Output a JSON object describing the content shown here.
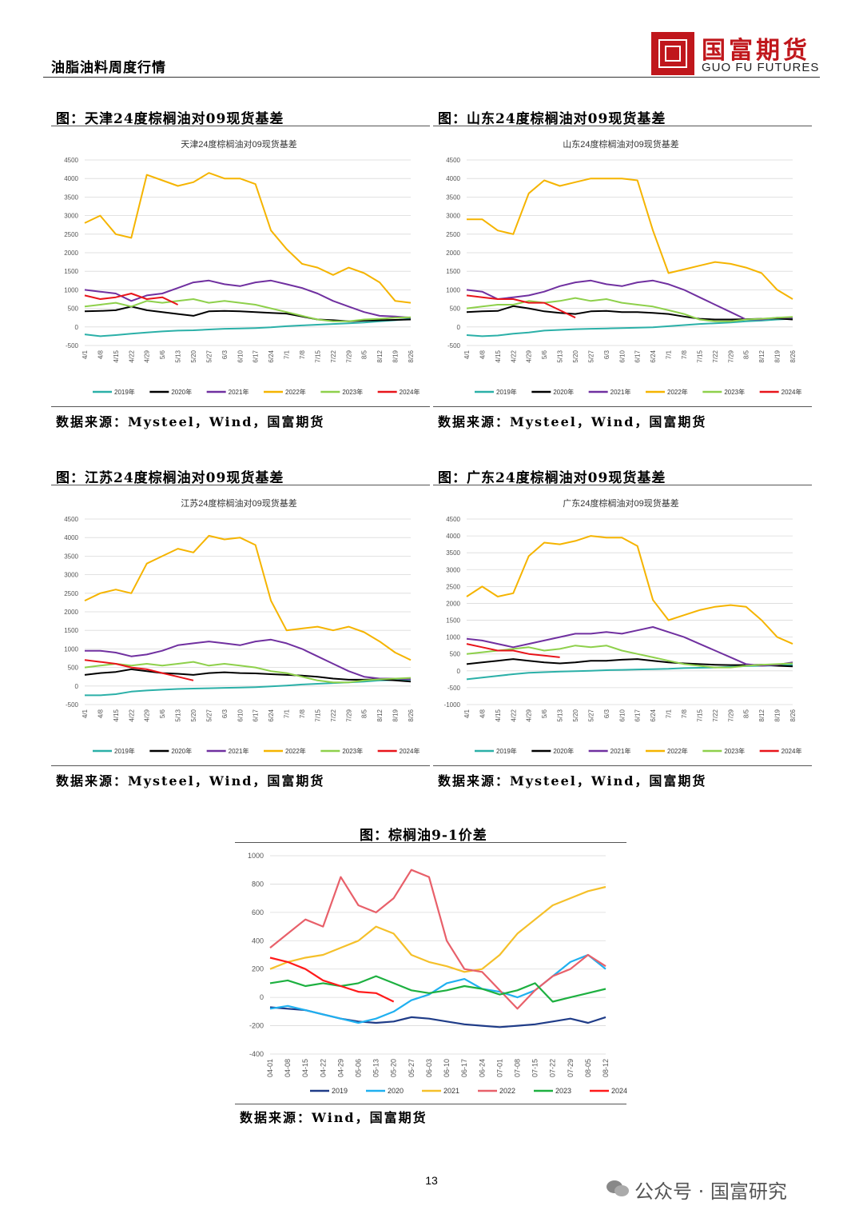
{
  "header": {
    "report_title": "油脂油料周度行情",
    "brand_cn": "国富期货",
    "brand_en": "GUO FU FUTURES"
  },
  "figures": [
    {
      "fig_title": "图：天津24度棕榈油对09现货基差",
      "source": "数据来源：Mysteel，Wind，国富期货"
    },
    {
      "fig_title": "图：山东24度棕榈油对09现货基差",
      "source": "数据来源：Mysteel，Wind，国富期货"
    },
    {
      "fig_title": "图：江苏24度棕榈油对09现货基差",
      "source": "数据来源：Mysteel，Wind，国富期货"
    },
    {
      "fig_title": "图：广东24度棕榈油对09现货基差",
      "source": "数据来源：Mysteel，Wind，国富期货"
    },
    {
      "fig_title": "图：棕榈油9-1价差",
      "source": "数据来源：Wind，国富期货"
    }
  ],
  "page_number": "13",
  "footer": {
    "wechat": "公众号 · 国富研究"
  },
  "chart_data": [
    {
      "type": "line",
      "title": "天津24度棕榈油对09现货基差",
      "x": [
        "4/1",
        "4/8",
        "4/15",
        "4/22",
        "4/29",
        "5/6",
        "5/13",
        "5/20",
        "5/27",
        "6/3",
        "6/10",
        "6/17",
        "6/24",
        "7/1",
        "7/8",
        "7/15",
        "7/22",
        "7/29",
        "8/5",
        "8/12",
        "8/19",
        "8/26"
      ],
      "ylim": [
        -500,
        4500
      ],
      "yticks": [
        "4500",
        "4000",
        "3500",
        "3000",
        "2500",
        "2000",
        "1500",
        "1000",
        "500",
        "0",
        "-500"
      ],
      "series": [
        {
          "name": "2019年",
          "color": "#2bb0a8",
          "values": [
            -200,
            -250,
            -220,
            -180,
            -150,
            -120,
            -100,
            -90,
            -70,
            -50,
            -40,
            -30,
            -10,
            20,
            40,
            60,
            80,
            100,
            120,
            150,
            180,
            220
          ]
        },
        {
          "name": "2020年",
          "color": "#000000",
          "values": [
            420,
            430,
            450,
            550,
            450,
            400,
            350,
            300,
            420,
            430,
            420,
            400,
            380,
            360,
            280,
            200,
            180,
            150,
            170,
            180,
            190,
            200
          ]
        },
        {
          "name": "2021年",
          "color": "#7030a0",
          "values": [
            1000,
            950,
            900,
            700,
            850,
            900,
            1050,
            1200,
            1250,
            1150,
            1100,
            1200,
            1250,
            1150,
            1050,
            900,
            700,
            550,
            400,
            300,
            280,
            250
          ]
        },
        {
          "name": "2022年",
          "color": "#f5b400",
          "values": [
            2800,
            3000,
            2500,
            2400,
            4100,
            3950,
            3800,
            3900,
            4150,
            4000,
            4000,
            3850,
            2600,
            2100,
            1700,
            1600,
            1400,
            1600,
            1450,
            1200,
            700,
            650
          ]
        },
        {
          "name": "2023年",
          "color": "#8ed04b",
          "values": [
            550,
            600,
            650,
            550,
            700,
            650,
            700,
            750,
            650,
            700,
            650,
            600,
            500,
            400,
            300,
            200,
            150,
            150,
            200,
            220,
            250,
            260
          ]
        },
        {
          "name": "2024年",
          "color": "#e8141a",
          "values": [
            850,
            750,
            800,
            900,
            750,
            800,
            600,
            null,
            null,
            null,
            null,
            null,
            null,
            null,
            null,
            null,
            null,
            null,
            null,
            null,
            null,
            null
          ]
        }
      ]
    },
    {
      "type": "line",
      "title": "山东24度棕榈油对09现货基差",
      "x": [
        "4/1",
        "4/8",
        "4/15",
        "4/22",
        "4/29",
        "5/6",
        "5/13",
        "5/20",
        "5/27",
        "6/3",
        "6/10",
        "6/17",
        "6/24",
        "7/1",
        "7/8",
        "7/15",
        "7/22",
        "7/29",
        "8/5",
        "8/12",
        "8/19",
        "8/26"
      ],
      "ylim": [
        -500,
        4500
      ],
      "yticks": [
        "4500",
        "4000",
        "3500",
        "3000",
        "2500",
        "2000",
        "1500",
        "1000",
        "500",
        "0",
        "-500"
      ],
      "series": [
        {
          "name": "2019年",
          "color": "#2bb0a8",
          "values": [
            -220,
            -250,
            -230,
            -180,
            -150,
            -100,
            -80,
            -60,
            -50,
            -40,
            -30,
            -20,
            -10,
            20,
            50,
            80,
            100,
            120,
            150,
            170,
            200,
            220
          ]
        },
        {
          "name": "2020年",
          "color": "#000000",
          "values": [
            400,
            420,
            430,
            560,
            500,
            420,
            380,
            350,
            420,
            430,
            400,
            400,
            380,
            350,
            280,
            220,
            200,
            200,
            210,
            220,
            230,
            200
          ]
        },
        {
          "name": "2021年",
          "color": "#7030a0",
          "values": [
            1000,
            950,
            750,
            800,
            850,
            950,
            1100,
            1200,
            1250,
            1150,
            1100,
            1200,
            1250,
            1150,
            1000,
            800,
            600,
            400,
            200,
            200,
            250,
            250
          ]
        },
        {
          "name": "2022年",
          "color": "#f5b400",
          "values": [
            2900,
            2900,
            2600,
            2500,
            3600,
            3950,
            3800,
            3900,
            4000,
            4000,
            4000,
            3950,
            2600,
            1450,
            1550,
            1650,
            1750,
            1700,
            1600,
            1450,
            1000,
            750
          ]
        },
        {
          "name": "2023年",
          "color": "#8ed04b",
          "values": [
            500,
            550,
            600,
            600,
            700,
            650,
            700,
            780,
            700,
            750,
            650,
            600,
            550,
            450,
            350,
            200,
            150,
            150,
            200,
            220,
            250,
            270
          ]
        },
        {
          "name": "2024年",
          "color": "#e8141a",
          "values": [
            850,
            800,
            750,
            750,
            650,
            650,
            450,
            250,
            null,
            null,
            null,
            null,
            null,
            null,
            null,
            null,
            null,
            null,
            null,
            null,
            null,
            null
          ]
        }
      ]
    },
    {
      "type": "line",
      "title": "江苏24度棕榈油对09现货基差",
      "x": [
        "4/1",
        "4/8",
        "4/15",
        "4/22",
        "4/29",
        "5/6",
        "5/13",
        "5/20",
        "5/27",
        "6/3",
        "6/10",
        "6/17",
        "6/24",
        "7/1",
        "7/8",
        "7/15",
        "7/22",
        "7/29",
        "8/5",
        "8/12",
        "8/19",
        "8/26"
      ],
      "ylim": [
        -500,
        4500
      ],
      "yticks": [
        "4500",
        "4000",
        "3500",
        "3000",
        "2500",
        "2000",
        "1500",
        "1000",
        "500",
        "0",
        "-500"
      ],
      "series": [
        {
          "name": "2019年",
          "color": "#2bb0a8",
          "values": [
            -250,
            -250,
            -220,
            -150,
            -120,
            -100,
            -80,
            -70,
            -60,
            -50,
            -40,
            -30,
            -10,
            10,
            40,
            60,
            80,
            100,
            120,
            150,
            160,
            170
          ]
        },
        {
          "name": "2020年",
          "color": "#000000",
          "values": [
            300,
            350,
            380,
            450,
            400,
            350,
            330,
            300,
            350,
            370,
            350,
            340,
            320,
            300,
            280,
            250,
            200,
            170,
            170,
            180,
            150,
            120
          ]
        },
        {
          "name": "2021年",
          "color": "#7030a0",
          "values": [
            950,
            950,
            900,
            800,
            850,
            950,
            1100,
            1150,
            1200,
            1150,
            1100,
            1200,
            1250,
            1150,
            1000,
            800,
            600,
            400,
            250,
            200,
            200,
            180
          ]
        },
        {
          "name": "2022年",
          "color": "#f5b400",
          "values": [
            2300,
            2500,
            2600,
            2500,
            3300,
            3500,
            3700,
            3600,
            4050,
            3950,
            4000,
            3800,
            2300,
            1500,
            1550,
            1600,
            1500,
            1600,
            1450,
            1200,
            900,
            700
          ]
        },
        {
          "name": "2023年",
          "color": "#8ed04b",
          "values": [
            500,
            550,
            600,
            550,
            600,
            550,
            600,
            650,
            550,
            600,
            550,
            500,
            400,
            350,
            250,
            150,
            100,
            100,
            150,
            180,
            200,
            220
          ]
        },
        {
          "name": "2024年",
          "color": "#e8141a",
          "values": [
            700,
            650,
            600,
            500,
            450,
            350,
            250,
            150,
            null,
            null,
            null,
            null,
            null,
            null,
            null,
            null,
            null,
            null,
            null,
            null,
            null,
            null
          ]
        }
      ]
    },
    {
      "type": "line",
      "title": "广东24度棕榈油对09现货基差",
      "x": [
        "4/1",
        "4/8",
        "4/15",
        "4/22",
        "4/29",
        "5/6",
        "5/13",
        "5/20",
        "5/27",
        "6/3",
        "6/10",
        "6/17",
        "6/24",
        "7/1",
        "7/8",
        "7/15",
        "7/22",
        "7/29",
        "8/5",
        "8/12",
        "8/19",
        "8/26"
      ],
      "ylim": [
        -1000,
        4500
      ],
      "yticks": [
        "4500",
        "4000",
        "3500",
        "3000",
        "2500",
        "2000",
        "1500",
        "1000",
        "500",
        "0",
        "-500",
        "-1000"
      ],
      "series": [
        {
          "name": "2019年",
          "color": "#2bb0a8",
          "values": [
            -250,
            -200,
            -150,
            -100,
            -60,
            -40,
            -20,
            -10,
            0,
            20,
            30,
            40,
            50,
            60,
            80,
            90,
            100,
            120,
            140,
            150,
            160,
            170
          ]
        },
        {
          "name": "2020年",
          "color": "#000000",
          "values": [
            200,
            250,
            300,
            350,
            300,
            250,
            220,
            250,
            300,
            300,
            330,
            350,
            300,
            250,
            220,
            200,
            180,
            170,
            170,
            180,
            150,
            130
          ]
        },
        {
          "name": "2021年",
          "color": "#7030a0",
          "values": [
            950,
            900,
            800,
            700,
            800,
            900,
            1000,
            1100,
            1100,
            1150,
            1100,
            1200,
            1300,
            1150,
            1000,
            800,
            600,
            400,
            200,
            150,
            180,
            250
          ]
        },
        {
          "name": "2022年",
          "color": "#f5b400",
          "values": [
            2200,
            2500,
            2200,
            2300,
            3400,
            3800,
            3750,
            3850,
            4000,
            3950,
            3950,
            3700,
            2100,
            1500,
            1650,
            1800,
            1900,
            1950,
            1900,
            1500,
            1000,
            800
          ]
        },
        {
          "name": "2023年",
          "color": "#8ed04b",
          "values": [
            500,
            550,
            600,
            650,
            700,
            600,
            650,
            750,
            700,
            750,
            600,
            500,
            400,
            300,
            200,
            150,
            100,
            100,
            150,
            180,
            200,
            220
          ]
        },
        {
          "name": "2024年",
          "color": "#e8141a",
          "values": [
            800,
            700,
            600,
            600,
            500,
            450,
            400,
            null,
            null,
            null,
            null,
            null,
            null,
            null,
            null,
            null,
            null,
            null,
            null,
            null,
            null,
            null
          ]
        }
      ]
    },
    {
      "type": "line",
      "title": "棕榈油9-1价差",
      "x": [
        "04-01",
        "04-08",
        "04-15",
        "04-22",
        "04-29",
        "05-06",
        "05-13",
        "05-20",
        "05-27",
        "06-03",
        "06-10",
        "06-17",
        "06-24",
        "07-01",
        "07-08",
        "07-15",
        "07-22",
        "07-29",
        "08-05",
        "08-12"
      ],
      "ylim": [
        -400,
        1000
      ],
      "yticks": [
        "1000",
        "800",
        "600",
        "400",
        "200",
        "0",
        "-200",
        "-400"
      ],
      "series": [
        {
          "name": "2019",
          "color": "#1f3c88",
          "values": [
            -70,
            -80,
            -90,
            -120,
            -150,
            -170,
            -180,
            -170,
            -140,
            -150,
            -170,
            -190,
            -200,
            -210,
            -200,
            -190,
            -170,
            -150,
            -180,
            -140
          ]
        },
        {
          "name": "2020",
          "color": "#1fb0f0",
          "values": [
            -80,
            -60,
            -90,
            -120,
            -150,
            -180,
            -150,
            -100,
            -20,
            20,
            100,
            130,
            60,
            40,
            0,
            50,
            150,
            250,
            300,
            200
          ]
        },
        {
          "name": "2021",
          "color": "#f5c02a",
          "values": [
            200,
            250,
            280,
            300,
            350,
            400,
            500,
            450,
            300,
            250,
            220,
            180,
            200,
            300,
            450,
            550,
            650,
            700,
            750,
            780
          ]
        },
        {
          "name": "2022",
          "color": "#e8606a",
          "values": [
            350,
            450,
            550,
            500,
            850,
            650,
            600,
            700,
            900,
            850,
            400,
            200,
            180,
            50,
            -80,
            50,
            150,
            200,
            300,
            220
          ]
        },
        {
          "name": "2023",
          "color": "#1db040",
          "values": [
            100,
            120,
            80,
            100,
            80,
            100,
            150,
            100,
            50,
            30,
            50,
            80,
            60,
            20,
            50,
            100,
            -30,
            0,
            30,
            60
          ]
        },
        {
          "name": "2024",
          "color": "#ff1a1a",
          "values": [
            280,
            250,
            200,
            120,
            80,
            40,
            30,
            -30,
            null,
            null,
            null,
            null,
            null,
            null,
            null,
            null,
            null,
            null,
            null,
            null
          ]
        }
      ]
    }
  ]
}
